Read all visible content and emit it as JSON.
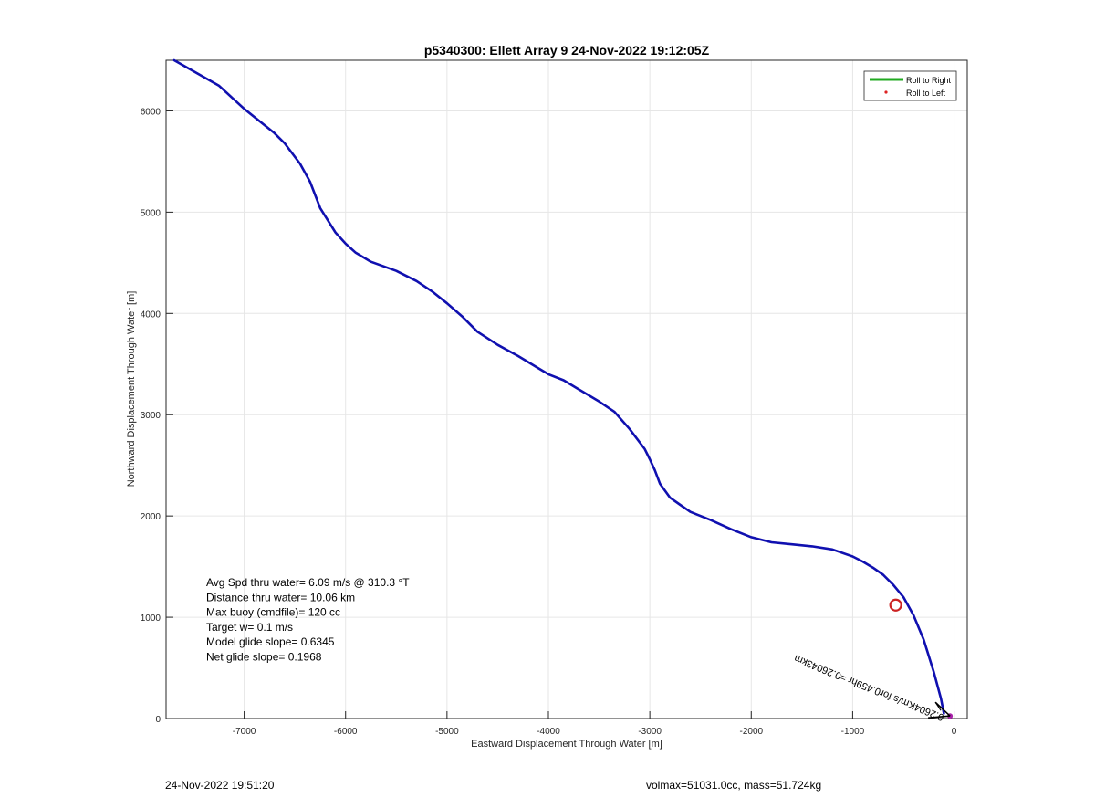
{
  "chart_data": {
    "type": "line",
    "title": "p5340300: Ellett Array 9 24-Nov-2022 19:12:05Z",
    "xlabel": "Eastward Displacement Through Water [m]",
    "ylabel": "Northward Displacement Through Water [m]",
    "xlim": [
      -7770,
      130
    ],
    "ylim": [
      0,
      6500
    ],
    "xticks": [
      -7000,
      -6000,
      -5000,
      -4000,
      -3000,
      -2000,
      -1000,
      0
    ],
    "yticks": [
      0,
      1000,
      2000,
      3000,
      4000,
      5000,
      6000
    ],
    "xtick_labels": [
      "-7000",
      "-6000",
      "-5000",
      "-4000",
      "-3000",
      "-2000",
      "-1000",
      "0"
    ],
    "ytick_labels": [
      "0",
      "1000",
      "2000",
      "3000",
      "4000",
      "5000",
      "6000"
    ],
    "grid": true,
    "legend_position": "top-right",
    "legend": [
      {
        "label": "Roll to Right",
        "color": "#22aa22",
        "marker": "line"
      },
      {
        "label": "Roll to Left",
        "color": "#dd2222",
        "marker": "dot"
      }
    ],
    "series": [
      {
        "color": "#1010b0",
        "x": [
          -7690,
          -7250,
          -7000,
          -6700,
          -6600,
          -6450,
          -6350,
          -6250,
          -6100,
          -6000,
          -5900,
          -5750,
          -5500,
          -5300,
          -5150,
          -5000,
          -4850,
          -4700,
          -4500,
          -4300,
          -4100,
          -4000,
          -3850,
          -3700,
          -3500,
          -3350,
          -3200,
          -3050,
          -3000,
          -2950,
          -2900,
          -2800,
          -2700,
          -2600,
          -2400,
          -2200,
          -2000,
          -1800,
          -1600,
          -1400,
          -1200,
          -1000,
          -900,
          -800,
          -700,
          -600,
          -500,
          -400,
          -300,
          -200,
          -130,
          -100
        ],
        "y": [
          6500,
          6250,
          6020,
          5780,
          5680,
          5480,
          5300,
          5040,
          4800,
          4690,
          4600,
          4510,
          4420,
          4320,
          4220,
          4100,
          3970,
          3820,
          3690,
          3580,
          3460,
          3400,
          3340,
          3250,
          3130,
          3030,
          2860,
          2660,
          2560,
          2450,
          2320,
          2180,
          2110,
          2040,
          1960,
          1870,
          1790,
          1740,
          1720,
          1700,
          1670,
          1600,
          1550,
          1490,
          1420,
          1320,
          1200,
          1020,
          780,
          460,
          200,
          50
        ]
      }
    ],
    "markers": [
      {
        "type": "circle",
        "x": -575,
        "y": 1120,
        "color": "#cc2222"
      },
      {
        "type": "dot",
        "x": -40,
        "y": 25,
        "color": "#aa22aa"
      }
    ],
    "vector_label": {
      "text": "0.2604Km/s for0.459hr =0.26043km",
      "x": -40,
      "y": 25
    },
    "annotations": [
      "Avg Spd thru water=  6.09 m/s @ 310.3 °T",
      "Distance thru water= 10.06 km",
      "Max buoy (cmdfile)= 120 cc",
      "Target w= 0.1 m/s",
      "Model glide slope= 0.6345",
      "Net glide slope= 0.1968"
    ]
  },
  "footer": {
    "left": "24-Nov-2022 19:51:20",
    "right": "volmax=51031.0cc, mass=51.724kg"
  }
}
